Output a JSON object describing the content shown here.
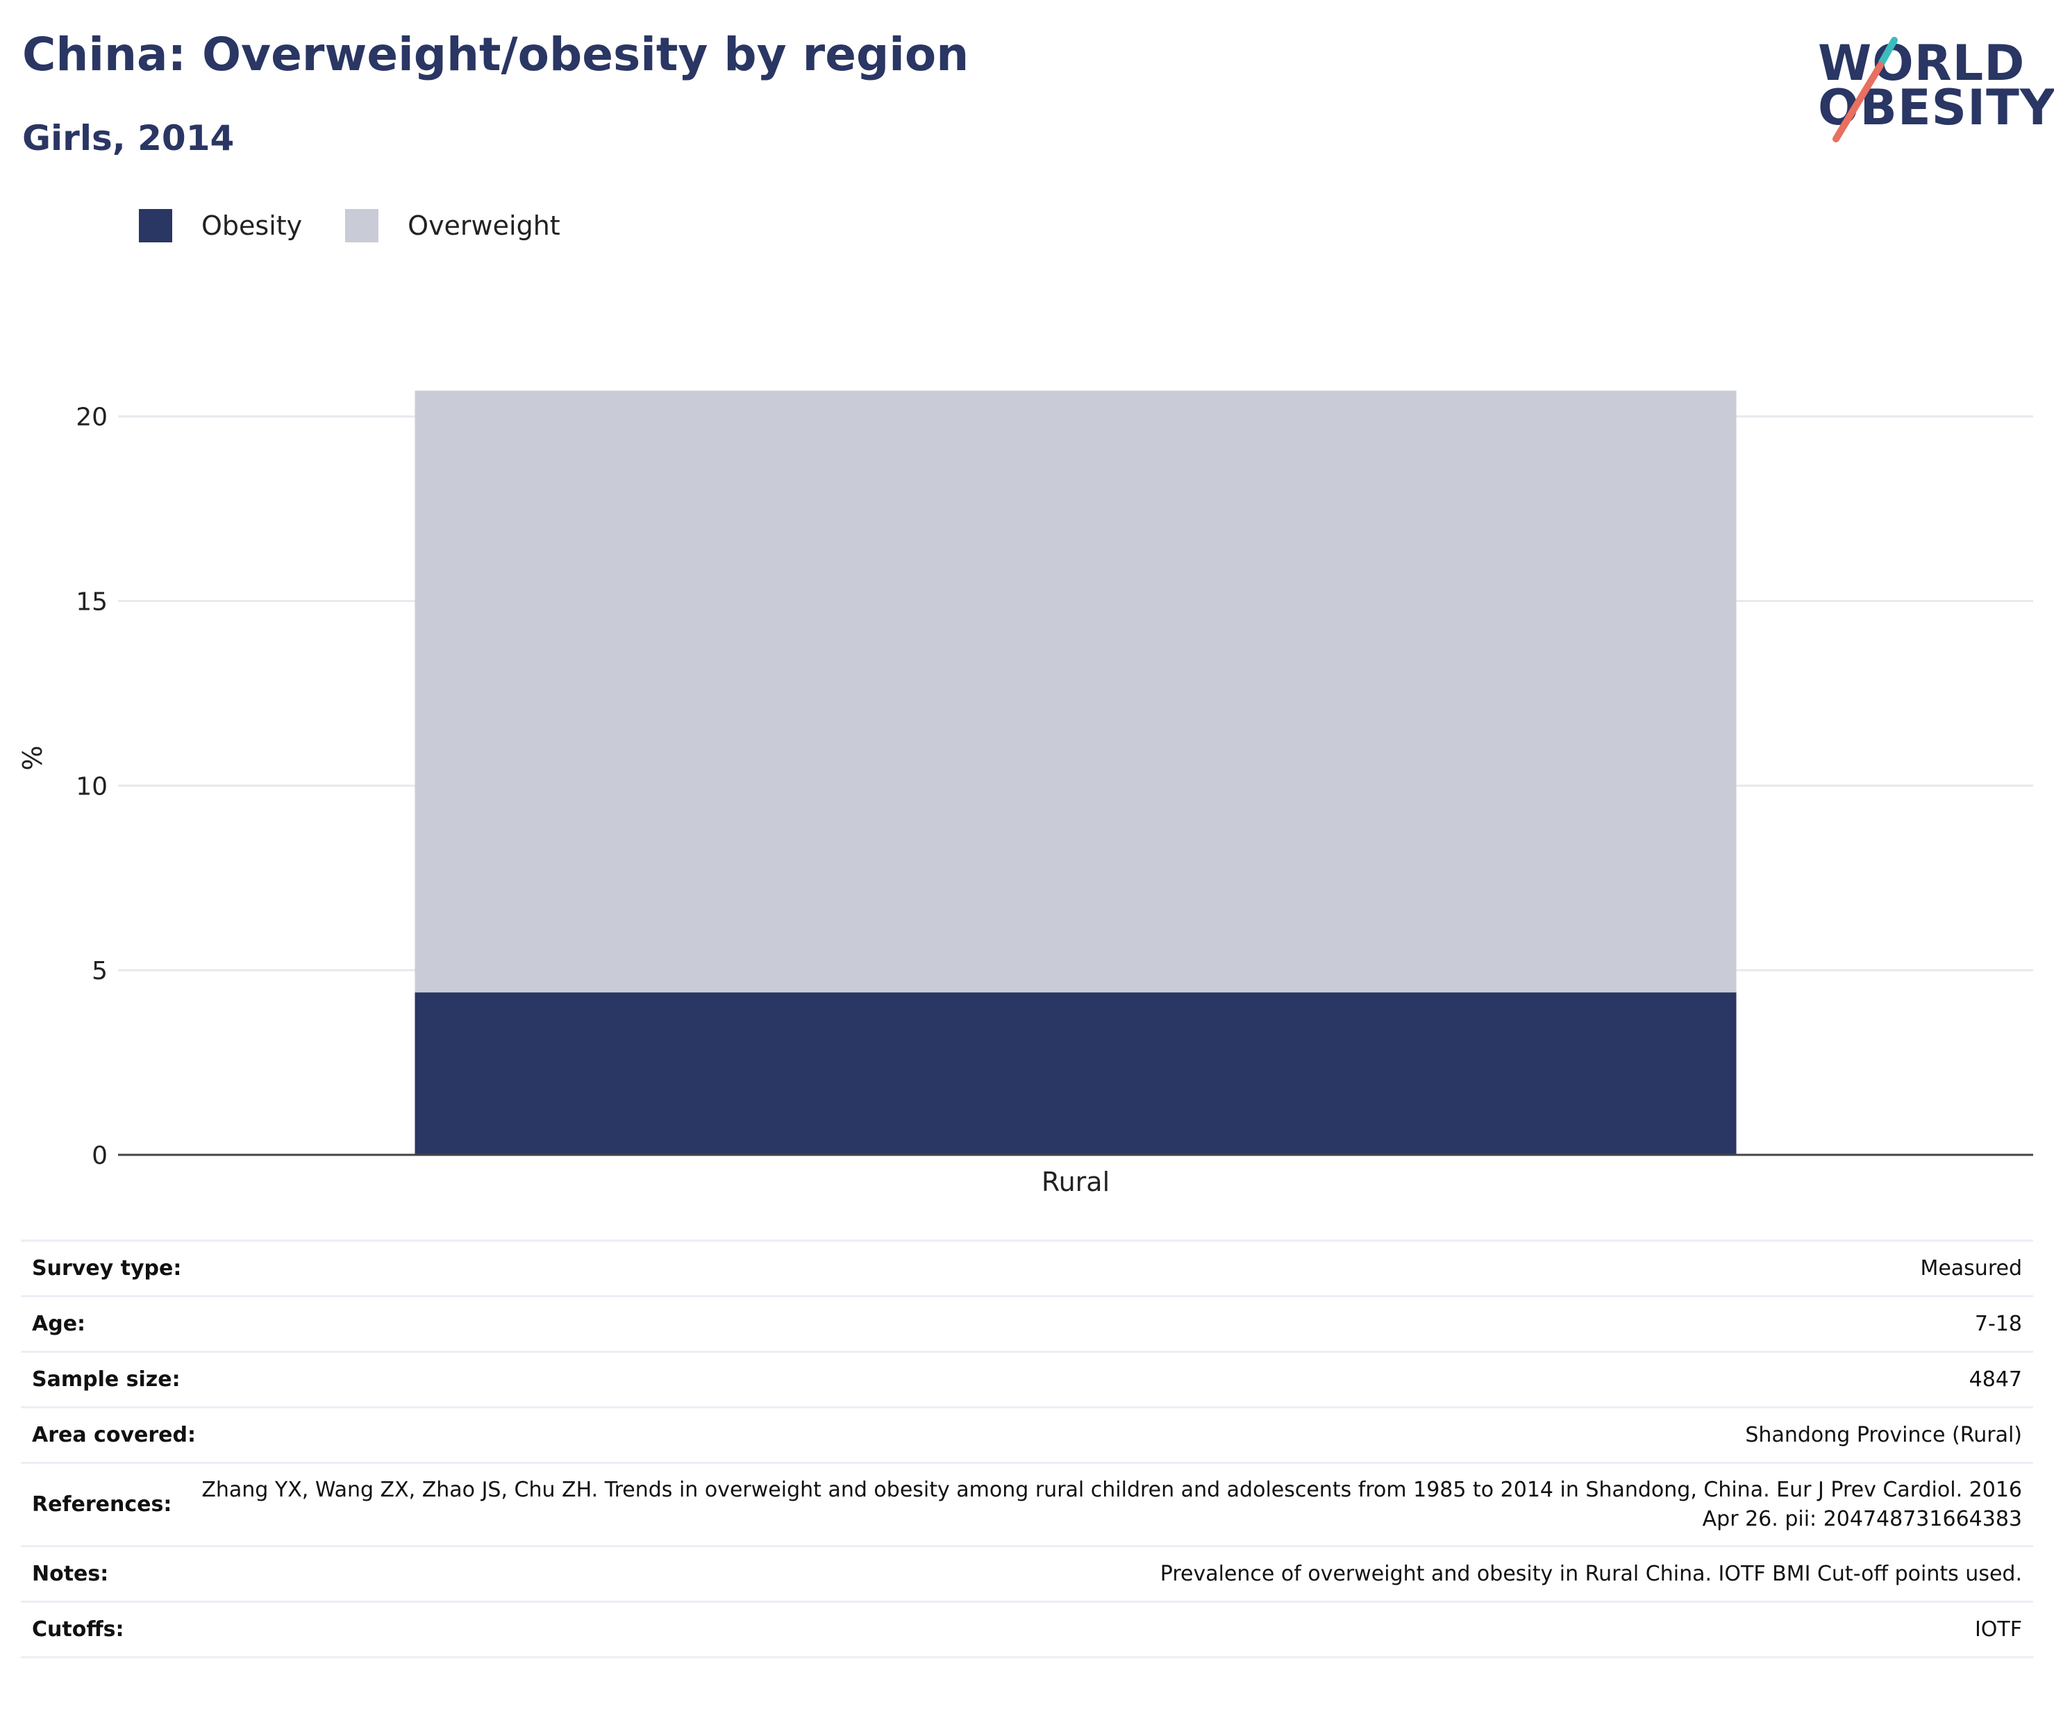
{
  "header": {
    "title": "China: Overweight/obesity by region",
    "subtitle": "Girls, 2014"
  },
  "logo": {
    "line1": "WORLD",
    "line2": "OBESITY"
  },
  "colors": {
    "obesity": "#2a3663",
    "overweight": "#c9ccd7",
    "title": "#2a3663",
    "logo_teal": "#3cbcbf",
    "logo_coral": "#e8705f"
  },
  "chart_data": {
    "type": "bar",
    "stacked": true,
    "categories": [
      "Rural"
    ],
    "series": [
      {
        "name": "Obesity",
        "values": [
          4.4
        ],
        "color": "#2a3663"
      },
      {
        "name": "Overweight",
        "values": [
          16.3
        ],
        "color": "#c9ccd7"
      }
    ],
    "ylabel": "%",
    "xlabel": "",
    "ylim": [
      0,
      21.5
    ],
    "yticks": [
      0,
      5,
      10,
      15,
      20
    ],
    "grid": true,
    "legend_position": "top-left"
  },
  "info": {
    "rows": [
      {
        "key": "Survey type:",
        "value": "Measured"
      },
      {
        "key": "Age:",
        "value": "7-18"
      },
      {
        "key": "Sample size:",
        "value": "4847"
      },
      {
        "key": "Area covered:",
        "value": "Shandong Province (Rural)"
      },
      {
        "key": "References:",
        "value": "Zhang YX, Wang ZX, Zhao JS, Chu ZH. Trends in overweight and obesity among rural children and adolescents from 1985 to 2014 in Shandong, China. Eur J Prev Cardiol. 2016 Apr 26. pii: 204748731664383"
      },
      {
        "key": "Notes:",
        "value": "Prevalence of overweight and obesity in Rural China. IOTF BMI Cut-off points used."
      },
      {
        "key": "Cutoffs:",
        "value": "IOTF"
      }
    ]
  }
}
